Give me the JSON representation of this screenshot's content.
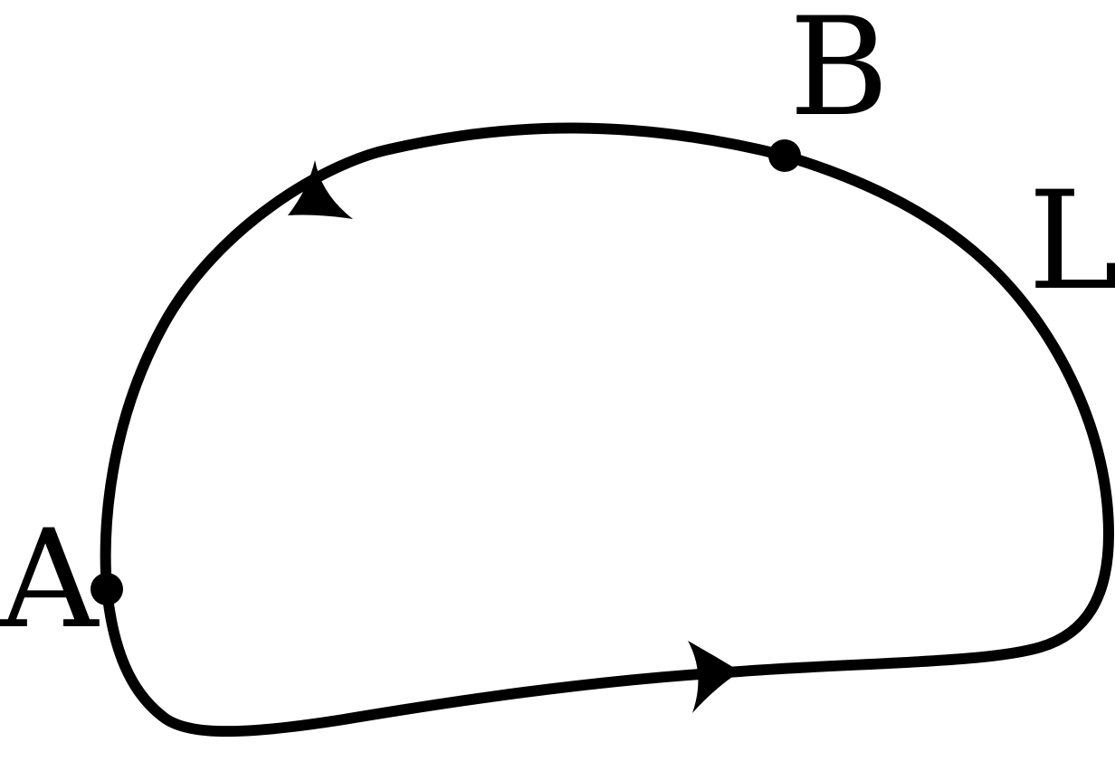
{
  "diagram": {
    "curve_label": "L",
    "points": [
      {
        "id": "A",
        "label": "A"
      },
      {
        "id": "B",
        "label": "B"
      }
    ],
    "direction": "counterclockwise",
    "stroke_color": "#000000",
    "background_color": "#ffffff"
  }
}
